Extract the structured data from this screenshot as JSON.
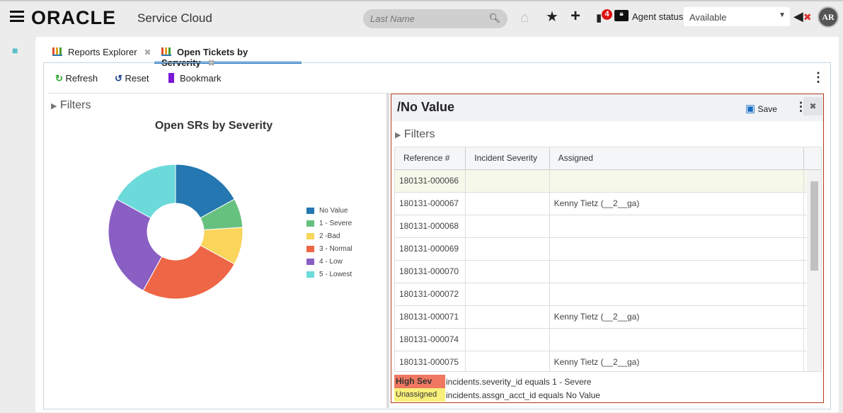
{
  "header": {
    "logo": "ORACLE",
    "product": "Service Cloud",
    "search_placeholder": "Last Name",
    "notification_count": "4",
    "agent_status_label": "Agent status:",
    "agent_status_value": "Available",
    "avatar_initials": "AR"
  },
  "tabs": [
    {
      "label": "Reports Explorer"
    },
    {
      "label": "Open Tickets by Serverity"
    }
  ],
  "toolbar": {
    "refresh": "Refresh",
    "reset": "Reset",
    "bookmark": "Bookmark"
  },
  "left": {
    "filters": "Filters"
  },
  "chart_data": {
    "type": "pie",
    "title": "Open SRs by Severity",
    "categories": [
      "No Value",
      "1 - Severe",
      "2 -Bad",
      "3 - Normal",
      "4 - Low",
      "5 - Lowest"
    ],
    "values": [
      17,
      7,
      9,
      25,
      25,
      17
    ],
    "colors": [
      "#2477b0",
      "#66c17f",
      "#f9d55c",
      "#ee6645",
      "#8a5fc4",
      "#6cdada"
    ],
    "legend": "right",
    "donut": true
  },
  "detail": {
    "title": "/No Value",
    "save": "Save",
    "filters": "Filters",
    "columns": [
      "Reference #",
      "Incident Severity",
      "Assigned"
    ],
    "rows": [
      [
        "180131-000066",
        "",
        ""
      ],
      [
        "180131-000067",
        "",
        "Kenny Tietz (__2__ga)"
      ],
      [
        "180131-000068",
        "",
        ""
      ],
      [
        "180131-000069",
        "",
        ""
      ],
      [
        "180131-000070",
        "",
        ""
      ],
      [
        "180131-000072",
        "",
        ""
      ],
      [
        "180131-000071",
        "",
        "Kenny Tietz (__2__ga)"
      ],
      [
        "180131-000074",
        "",
        ""
      ],
      [
        "180131-000075",
        "",
        "Kenny Tietz (__2__ga)"
      ]
    ],
    "conditions": [
      {
        "label": "High Sev",
        "text": "incidents.severity_id equals 1 - Severe",
        "color": "#f07860"
      },
      {
        "label": "Unassigned",
        "text": "incidents.assgn_acct_id equals No Value",
        "color": "#f8f07a"
      }
    ]
  }
}
